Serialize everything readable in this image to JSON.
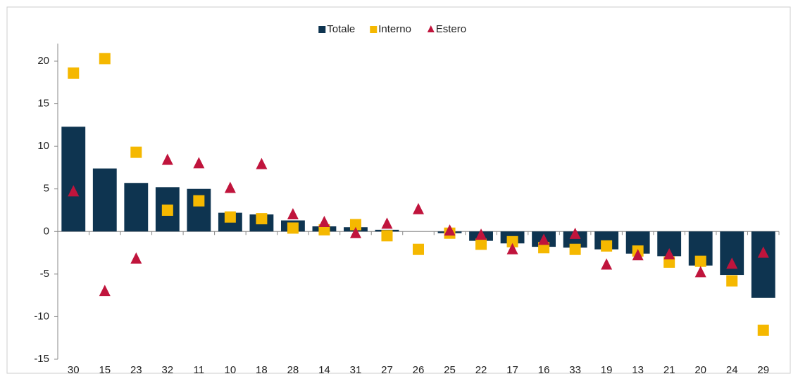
{
  "chart_data": {
    "type": "bar",
    "categories": [
      "30",
      "15",
      "23",
      "32",
      "11",
      "10",
      "18",
      "28",
      "14",
      "31",
      "27",
      "26",
      "25",
      "22",
      "17",
      "16",
      "33",
      "19",
      "13",
      "21",
      "20",
      "24",
      "29"
    ],
    "series": [
      {
        "name": "Totale",
        "color": "#0e3450",
        "marker": "bar",
        "values": [
          12.3,
          7.4,
          5.7,
          5.2,
          5.0,
          2.2,
          2.0,
          1.3,
          0.6,
          0.5,
          0.2,
          0.0,
          -0.2,
          -1.1,
          -1.4,
          -1.8,
          -1.9,
          -2.1,
          -2.6,
          -2.9,
          -4.0,
          -5.1,
          -7.8
        ]
      },
      {
        "name": "Interno",
        "color": "#f5b800",
        "marker": "square",
        "values": [
          18.6,
          20.3,
          9.3,
          2.5,
          3.6,
          1.7,
          1.5,
          0.4,
          0.2,
          0.8,
          -0.5,
          -2.1,
          -0.2,
          -1.5,
          -1.2,
          -1.9,
          -2.1,
          -1.7,
          -2.3,
          -3.6,
          -3.5,
          -5.8,
          -11.6
        ]
      },
      {
        "name": "Estero",
        "color": "#c0143c",
        "marker": "triangle",
        "values": [
          4.7,
          -7.0,
          -3.2,
          8.4,
          8.0,
          5.1,
          7.9,
          2.0,
          1.1,
          -0.2,
          0.9,
          2.6,
          0.1,
          -0.4,
          -2.1,
          -1.0,
          -0.3,
          -3.9,
          -2.8,
          -2.7,
          -4.8,
          -3.8,
          -2.5
        ]
      }
    ],
    "ylim": [
      -15,
      20
    ],
    "yticks": [
      -15,
      -10,
      -5,
      0,
      5,
      10,
      15,
      20
    ],
    "grid": false,
    "legend": "top"
  }
}
